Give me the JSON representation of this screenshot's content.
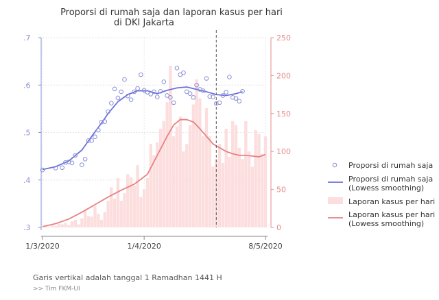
{
  "chart_data": {
    "type": "bar",
    "title_line1": "Proporsi di rumah saja dan laporan kasus per hari",
    "title_line2": "di DKI Jakarta",
    "xlabel": "",
    "y_left_label": "",
    "y_right_label": "",
    "x_ticks": [
      "1/3/2020",
      "1/4/2020",
      "8/5/2020"
    ],
    "y_left_ticks": [
      ".3",
      ".4",
      ".5",
      ".6",
      ".7"
    ],
    "y_left_lim": [
      0.3,
      0.7
    ],
    "y_right_ticks": [
      "0",
      "50",
      "100",
      "150",
      "200",
      "250"
    ],
    "y_right_lim": [
      0,
      250
    ],
    "x_day_range": [
      0,
      68
    ],
    "vertical_line_day": 53,
    "grid": true,
    "colors": {
      "points": "#8a8fd8",
      "smooth_points": "#6a70d8",
      "bars": "#fcdede",
      "smooth_bars": "#e88080",
      "vline": "#555555",
      "grid": "#e6e6e6"
    },
    "series": [
      {
        "name": "Proporsi di rumah saja",
        "kind": "scatter",
        "axis": "left",
        "x": [
          0,
          4,
          6,
          7,
          8,
          9,
          10,
          12,
          13,
          14,
          15,
          16,
          17,
          18,
          19,
          20,
          21,
          22,
          23,
          24,
          25,
          26,
          27,
          28,
          29,
          30,
          31,
          32,
          33,
          34,
          35,
          36,
          37,
          38,
          39,
          40,
          41,
          42,
          43,
          44,
          45,
          46,
          47,
          48,
          49,
          50,
          51,
          52,
          53,
          54,
          55,
          56,
          57,
          58,
          59,
          60,
          61
        ],
        "y": [
          0.421,
          0.425,
          0.426,
          0.437,
          0.438,
          0.436,
          0.452,
          0.432,
          0.444,
          0.483,
          0.483,
          0.491,
          0.505,
          0.522,
          0.523,
          0.544,
          0.562,
          0.592,
          0.573,
          0.586,
          0.612,
          0.577,
          0.569,
          0.586,
          0.593,
          0.622,
          0.589,
          0.585,
          0.581,
          0.586,
          0.575,
          0.587,
          0.607,
          0.578,
          0.574,
          0.563,
          0.636,
          0.622,
          0.626,
          0.586,
          0.582,
          0.574,
          0.6,
          0.591,
          0.588,
          0.614,
          0.576,
          0.575,
          0.561,
          0.563,
          0.578,
          0.585,
          0.617,
          0.574,
          0.572,
          0.566,
          0.587
        ]
      },
      {
        "name": "Proporsi di rumah saja\n(Lowess smoothing)",
        "kind": "line",
        "axis": "left",
        "x": [
          0,
          4,
          8,
          12,
          15,
          18,
          20,
          23,
          26,
          29,
          32,
          35,
          38,
          41,
          44,
          47,
          50,
          53,
          56,
          59,
          61
        ],
        "y": [
          0.422,
          0.428,
          0.44,
          0.463,
          0.492,
          0.52,
          0.54,
          0.565,
          0.58,
          0.588,
          0.588,
          0.582,
          0.589,
          0.594,
          0.596,
          0.591,
          0.586,
          0.58,
          0.578,
          0.582,
          0.586
        ]
      },
      {
        "name": "Laporan kasus per hari",
        "kind": "bar",
        "axis": "right",
        "x": [
          0,
          1,
          2,
          3,
          4,
          5,
          6,
          7,
          8,
          9,
          10,
          11,
          12,
          13,
          14,
          15,
          16,
          17,
          18,
          19,
          20,
          21,
          22,
          23,
          24,
          25,
          26,
          27,
          28,
          29,
          30,
          31,
          32,
          33,
          34,
          35,
          36,
          37,
          38,
          39,
          40,
          41,
          42,
          43,
          44,
          45,
          46,
          47,
          48,
          49,
          50,
          51,
          52,
          53,
          54,
          55,
          56,
          57,
          58,
          59,
          60,
          61,
          62,
          63,
          64,
          65,
          66,
          67,
          68
        ],
        "y": [
          0,
          2,
          1,
          3,
          2,
          5,
          4,
          6,
          3,
          8,
          10,
          4,
          12,
          22,
          15,
          14,
          28,
          18,
          10,
          20,
          35,
          53,
          38,
          65,
          35,
          45,
          70,
          66,
          55,
          82,
          40,
          50,
          65,
          110,
          95,
          112,
          130,
          140,
          165,
          213,
          120,
          133,
          146,
          100,
          110,
          135,
          162,
          195,
          170,
          120,
          157,
          120,
          80,
          90,
          110,
          85,
          130,
          93,
          140,
          135,
          105,
          90,
          140,
          100,
          80,
          128,
          123,
          97,
          120
        ]
      },
      {
        "name": "Laporan kasus per hari\n(Lowess smoothing)",
        "kind": "line",
        "axis": "right",
        "x": [
          0,
          4,
          8,
          12,
          16,
          20,
          24,
          28,
          32,
          35,
          38,
          40,
          42,
          44,
          46,
          48,
          50,
          52,
          54,
          56,
          58,
          60,
          62,
          64,
          66,
          68
        ],
        "y": [
          1,
          5,
          11,
          20,
          30,
          40,
          49,
          57,
          70,
          95,
          120,
          135,
          142,
          142,
          139,
          130,
          120,
          110,
          105,
          100,
          97,
          95,
          95,
          94,
          93,
          96
        ]
      }
    ],
    "legend": {
      "position": "right",
      "entries": [
        {
          "text": [
            "Proporsi di rumah saja"
          ],
          "kind": "point"
        },
        {
          "text": [
            "Proporsi di rumah saja",
            "(Lowess smoothing)"
          ],
          "kind": "line-blue"
        },
        {
          "text": [
            "Laporan kasus per hari"
          ],
          "kind": "bar"
        },
        {
          "text": [
            "Laporan kasus per hari",
            "(Lowess smoothing)"
          ],
          "kind": "line-red"
        }
      ]
    }
  },
  "notes": {
    "caption": "Garis vertikal adalah tanggal 1 Ramadhan 1441 H",
    "credit": ">> Tim FKM-UI"
  }
}
